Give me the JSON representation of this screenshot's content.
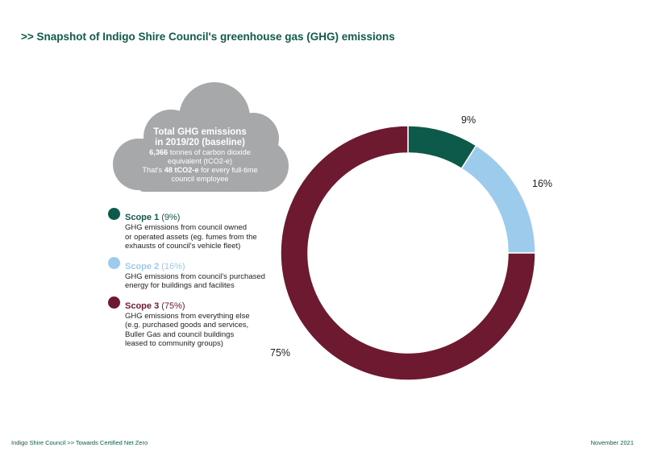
{
  "title": ">> Snapshot of Indigo Shire Council's greenhouse gas (GHG) emissions",
  "cloud": {
    "heading_line1": "Total GHG emissions",
    "heading_line2": "in 2019/20 (baseline)",
    "line1_bold": "6,366",
    "line1_rest": " tonnes of carbon dioxide",
    "line2": "equivalent (tCO2-e)",
    "line3_pre": "That's ",
    "line3_bold": "48 tCO2-e",
    "line3_post": " for every full-time",
    "line4": "council employee"
  },
  "legend": [
    {
      "name": "Scope 1",
      "pct": "(9%)",
      "color": "#0e5a4a",
      "desc": [
        "GHG emissions from council owned",
        "or operated assets (eg. fumes from the",
        "exhausts of council's vehicle fleet)"
      ]
    },
    {
      "name": "Scope 2",
      "pct": "(16%)",
      "color": "#9dcbeb",
      "desc": [
        "GHG emissions from council's purchased",
        "energy for buildings and facilites"
      ]
    },
    {
      "name": "Scope 3",
      "pct": "(75%)",
      "color": "#6d1a30",
      "desc": [
        "GHG emissions from everything else",
        "(e.g. purchased goods and services,",
        "Buller Gas and council buildings",
        "leased to community groups)"
      ]
    }
  ],
  "chart_data": {
    "type": "pie",
    "subtype": "donut",
    "categories": [
      "Scope 1",
      "Scope 2",
      "Scope 3"
    ],
    "values": [
      9,
      16,
      75
    ],
    "labels": [
      "9%",
      "16%",
      "75%"
    ],
    "colors": [
      "#0e5a4a",
      "#9dcbeb",
      "#6d1a30"
    ]
  },
  "footer": {
    "left": "Indigo Shire Council >> Towards Certified Net Zero",
    "right": "November 2021"
  }
}
